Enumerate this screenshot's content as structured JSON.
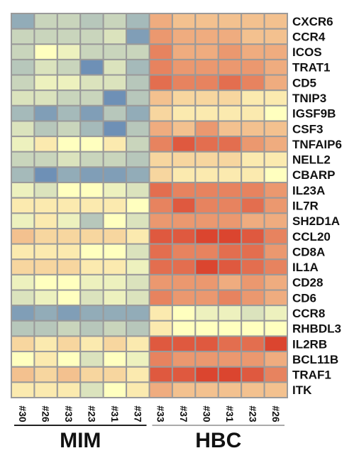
{
  "chart_data": {
    "type": "heatmap",
    "rows": [
      "CXCR6",
      "CCR4",
      "ICOS",
      "TRAT1",
      "CD5",
      "TNIP3",
      "IGSF9B",
      "CSF3",
      "TNFAIP6",
      "NELL2",
      "CBARP",
      "IL23A",
      "IL7R",
      "SH2D1A",
      "CCL20",
      "CD8A",
      "IL1A",
      "CD28",
      "CD6",
      "CCR8",
      "RHBDL3",
      "IL2RB",
      "BCL11B",
      "TRAF1",
      "ITK"
    ],
    "columns": [
      "#30",
      "#26",
      "#33",
      "#23",
      "#31",
      "#37",
      "#33",
      "#37",
      "#30",
      "#31",
      "#23",
      "#26"
    ],
    "groups": [
      {
        "label": "MIM",
        "start": 0,
        "end": 5
      },
      {
        "label": "HBC",
        "start": 6,
        "end": 11
      }
    ],
    "color_scale": {
      "low": "#4a74b4",
      "mid": "#ffffbf",
      "high": "#d7301f"
    },
    "values": [
      [
        -0.6,
        -0.3,
        -0.3,
        -0.4,
        -0.3,
        -0.5,
        0.4,
        0.3,
        0.3,
        0.3,
        0.3,
        0.3
      ],
      [
        -0.3,
        -0.3,
        -0.3,
        -0.3,
        -0.2,
        -0.7,
        0.5,
        0.4,
        0.4,
        0.4,
        0.3,
        0.3
      ],
      [
        -0.3,
        0.0,
        -0.1,
        -0.3,
        -0.3,
        -0.3,
        0.6,
        0.4,
        0.4,
        0.5,
        0.4,
        0.4
      ],
      [
        -0.4,
        -0.2,
        -0.3,
        -0.8,
        -0.2,
        -0.5,
        0.6,
        0.5,
        0.5,
        0.5,
        0.5,
        0.4
      ],
      [
        -0.3,
        -0.1,
        -0.1,
        -0.2,
        -0.2,
        -0.4,
        0.7,
        0.6,
        0.6,
        0.7,
        0.6,
        0.4
      ],
      [
        -0.2,
        -0.2,
        -0.3,
        -0.3,
        -0.8,
        -0.4,
        0.3,
        0.2,
        0.2,
        0.2,
        0.1,
        0.1
      ],
      [
        -0.5,
        -0.7,
        -0.5,
        -0.7,
        -0.4,
        -0.6,
        0.2,
        0.1,
        0.1,
        0.1,
        0.1,
        0.0
      ],
      [
        -0.2,
        -0.4,
        -0.3,
        -0.5,
        -0.8,
        -0.4,
        0.4,
        0.3,
        0.5,
        0.3,
        0.3,
        0.3
      ],
      [
        -0.1,
        0.1,
        0.0,
        0.0,
        0.1,
        -0.3,
        0.6,
        0.8,
        0.7,
        0.7,
        0.5,
        0.4
      ],
      [
        -0.3,
        -0.3,
        -0.2,
        -0.3,
        -0.3,
        -0.4,
        0.2,
        0.2,
        0.2,
        0.2,
        0.1,
        0.1
      ],
      [
        -0.5,
        -0.8,
        -0.6,
        -0.7,
        -0.7,
        -0.6,
        0.2,
        0.1,
        0.1,
        0.1,
        0.1,
        0.0
      ],
      [
        -0.1,
        -0.2,
        0.0,
        0.0,
        -0.1,
        -0.2,
        0.7,
        0.6,
        0.6,
        0.6,
        0.6,
        0.5
      ],
      [
        0.1,
        0.1,
        0.1,
        0.1,
        0.1,
        0.0,
        0.6,
        0.8,
        0.6,
        0.6,
        0.7,
        0.5
      ],
      [
        -0.1,
        0.1,
        -0.1,
        -0.4,
        0.0,
        -0.2,
        0.5,
        0.5,
        0.5,
        0.5,
        0.4,
        0.4
      ],
      [
        0.3,
        0.2,
        0.2,
        0.2,
        0.2,
        0.1,
        0.8,
        0.8,
        0.9,
        0.9,
        0.8,
        0.6
      ],
      [
        0.1,
        0.1,
        0.1,
        0.0,
        0.0,
        -0.2,
        0.7,
        0.6,
        0.6,
        0.7,
        0.7,
        0.5
      ],
      [
        0.2,
        0.2,
        0.2,
        0.1,
        0.1,
        -0.1,
        0.7,
        0.7,
        0.9,
        0.8,
        0.7,
        0.6
      ],
      [
        -0.1,
        0.0,
        0.0,
        -0.1,
        -0.1,
        -0.2,
        0.5,
        0.5,
        0.5,
        0.4,
        0.5,
        0.4
      ],
      [
        -0.2,
        -0.1,
        0.0,
        -0.2,
        -0.1,
        -0.2,
        0.6,
        0.5,
        0.5,
        0.6,
        0.5,
        0.4
      ],
      [
        -0.7,
        -0.6,
        -0.7,
        -0.6,
        -0.6,
        -0.6,
        0.1,
        0.0,
        -0.1,
        -0.1,
        -0.2,
        -0.1
      ],
      [
        -0.4,
        -0.4,
        -0.3,
        -0.4,
        -0.3,
        -0.4,
        0.1,
        0.0,
        0.0,
        0.0,
        0.0,
        0.0
      ],
      [
        0.2,
        0.1,
        0.2,
        0.1,
        0.2,
        0.1,
        0.8,
        0.8,
        0.8,
        0.7,
        0.7,
        0.9
      ],
      [
        0.0,
        0.1,
        0.0,
        -0.2,
        0.0,
        -0.1,
        0.6,
        0.5,
        0.5,
        0.5,
        0.5,
        0.4
      ],
      [
        0.3,
        0.2,
        0.3,
        0.2,
        0.2,
        0.1,
        0.8,
        0.8,
        0.9,
        0.9,
        0.8,
        0.6
      ],
      [
        0.1,
        0.1,
        0.1,
        -0.2,
        0.0,
        0.1,
        0.4,
        0.3,
        0.3,
        0.3,
        0.3,
        0.3
      ]
    ]
  }
}
